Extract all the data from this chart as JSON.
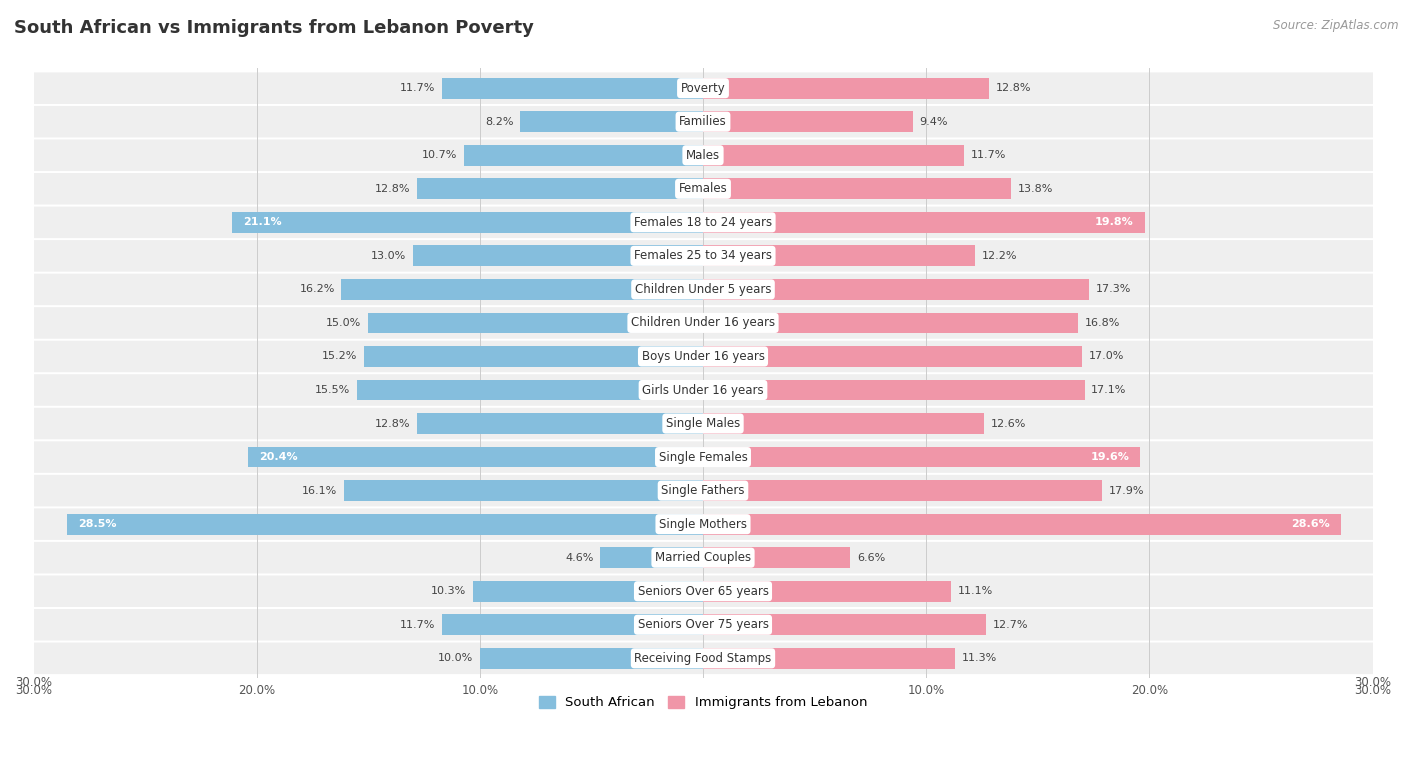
{
  "title": "South African vs Immigrants from Lebanon Poverty",
  "source": "Source: ZipAtlas.com",
  "categories": [
    "Poverty",
    "Families",
    "Males",
    "Females",
    "Females 18 to 24 years",
    "Females 25 to 34 years",
    "Children Under 5 years",
    "Children Under 16 years",
    "Boys Under 16 years",
    "Girls Under 16 years",
    "Single Males",
    "Single Females",
    "Single Fathers",
    "Single Mothers",
    "Married Couples",
    "Seniors Over 65 years",
    "Seniors Over 75 years",
    "Receiving Food Stamps"
  ],
  "south_african": [
    11.7,
    8.2,
    10.7,
    12.8,
    21.1,
    13.0,
    16.2,
    15.0,
    15.2,
    15.5,
    12.8,
    20.4,
    16.1,
    28.5,
    4.6,
    10.3,
    11.7,
    10.0
  ],
  "lebanon": [
    12.8,
    9.4,
    11.7,
    13.8,
    19.8,
    12.2,
    17.3,
    16.8,
    17.0,
    17.1,
    12.6,
    19.6,
    17.9,
    28.6,
    6.6,
    11.1,
    12.7,
    11.3
  ],
  "blue_color": "#85BEDD",
  "pink_color": "#F096A8",
  "bg_row_color": "#EFEFEF",
  "bg_color": "#FFFFFF",
  "axis_max": 30.0,
  "legend_label_blue": "South African",
  "legend_label_pink": "Immigrants from Lebanon"
}
